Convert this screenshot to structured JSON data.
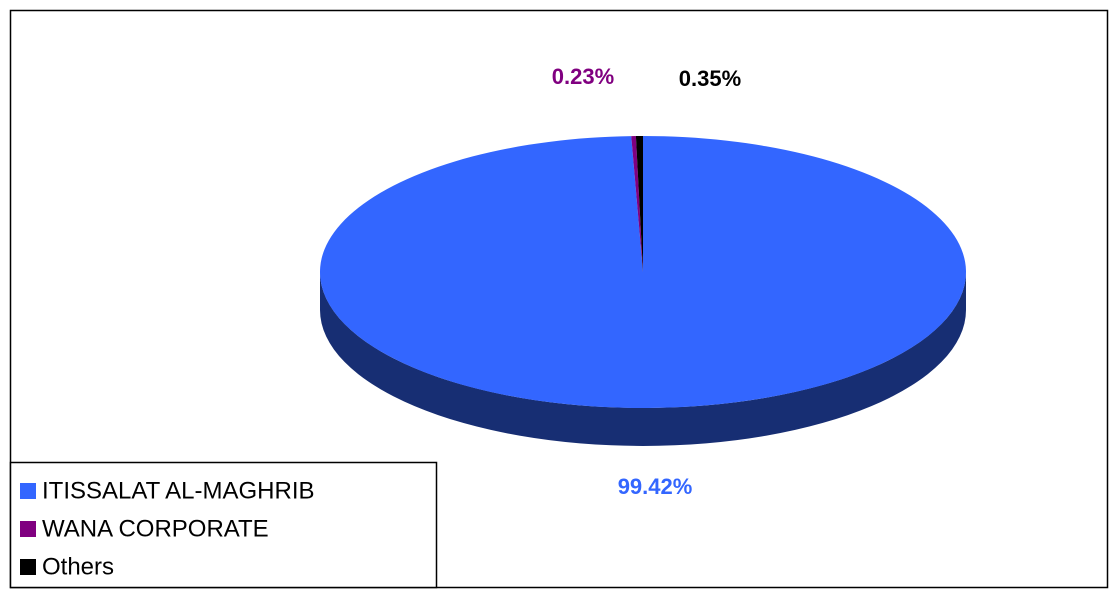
{
  "chart_data": {
    "type": "pie",
    "categories": [
      "ITISSALAT AL-MAGHRIB",
      "WANA CORPORATE",
      "Others"
    ],
    "values": [
      99.42,
      0.23,
      0.35
    ],
    "value_labels": [
      "99.42%",
      "0.23%",
      "0.35%"
    ],
    "colors": [
      "#3366ff",
      "#800080",
      "#000000"
    ],
    "legend": "bottom-left"
  }
}
